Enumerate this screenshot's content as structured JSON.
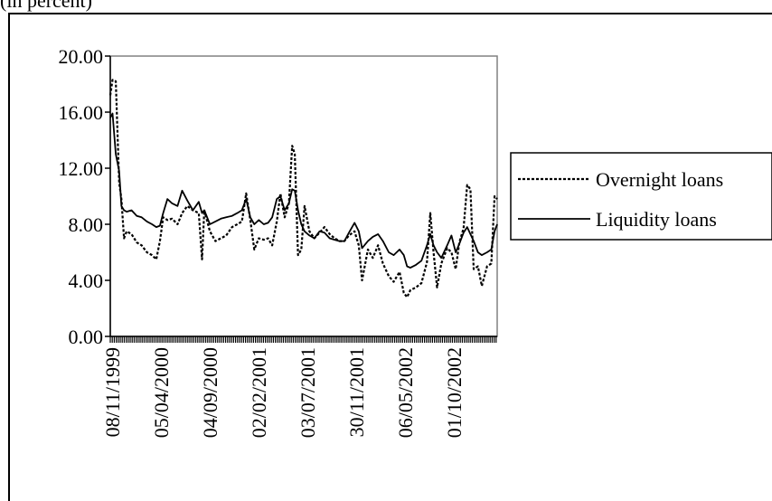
{
  "header": {
    "partial_text": "(in percent)"
  },
  "chart_data": {
    "type": "line",
    "ylim": [
      0,
      20
    ],
    "y_ticks": [
      "0.00",
      "4.00",
      "8.00",
      "12.00",
      "16.00",
      "20.00"
    ],
    "x_ticks": [
      "08/11/1999",
      "05/04/2000",
      "04/09/2000",
      "02/02/2001",
      "03/07/2001",
      "30/11/2001",
      "06/05/2002",
      "01/10/2002"
    ],
    "x_range": [
      "1999-11-08",
      "2003-02-05"
    ],
    "legend": {
      "position": "right",
      "entries": [
        "Overnight loans",
        "Liquidity loans"
      ]
    },
    "grid": false,
    "series": [
      {
        "name": "Overnight loans",
        "style": "dotted",
        "color": "#000000",
        "points": [
          [
            "1999-11-08",
            17.2
          ],
          [
            "1999-11-15",
            18.3
          ],
          [
            "1999-11-25",
            18.2
          ],
          [
            "1999-12-05",
            11.0
          ],
          [
            "1999-12-12",
            9.8
          ],
          [
            "1999-12-20",
            7.0
          ],
          [
            "1999-12-28",
            7.5
          ],
          [
            "2000-01-12",
            7.3
          ],
          [
            "2000-01-28",
            6.7
          ],
          [
            "2000-02-12",
            6.5
          ],
          [
            "2000-02-28",
            6.0
          ],
          [
            "2000-03-15",
            5.8
          ],
          [
            "2000-03-28",
            5.5
          ],
          [
            "2000-04-08",
            6.8
          ],
          [
            "2000-04-18",
            8.5
          ],
          [
            "2000-05-01",
            8.3
          ],
          [
            "2000-05-15",
            8.4
          ],
          [
            "2000-06-01",
            8.0
          ],
          [
            "2000-06-15",
            8.8
          ],
          [
            "2000-07-01",
            9.3
          ],
          [
            "2000-07-18",
            9.0
          ],
          [
            "2000-08-05",
            8.8
          ],
          [
            "2000-08-15",
            5.5
          ],
          [
            "2000-08-22",
            9.0
          ],
          [
            "2000-09-08",
            7.5
          ],
          [
            "2000-09-25",
            6.8
          ],
          [
            "2000-10-12",
            7.0
          ],
          [
            "2000-10-28",
            7.2
          ],
          [
            "2000-11-15",
            7.8
          ],
          [
            "2000-12-01",
            8.0
          ],
          [
            "2000-12-15",
            8.2
          ],
          [
            "2000-12-28",
            10.2
          ],
          [
            "2001-01-10",
            8.3
          ],
          [
            "2001-01-22",
            6.2
          ],
          [
            "2001-02-05",
            7.0
          ],
          [
            "2001-02-20",
            6.9
          ],
          [
            "2001-03-05",
            7.0
          ],
          [
            "2001-03-18",
            6.5
          ],
          [
            "2001-04-01",
            8.2
          ],
          [
            "2001-04-12",
            10.2
          ],
          [
            "2001-04-25",
            8.5
          ],
          [
            "2001-05-08",
            9.5
          ],
          [
            "2001-05-18",
            13.6
          ],
          [
            "2001-05-26",
            13.0
          ],
          [
            "2001-06-05",
            5.8
          ],
          [
            "2001-06-15",
            6.2
          ],
          [
            "2001-06-25",
            9.3
          ],
          [
            "2001-07-10",
            7.5
          ],
          [
            "2001-07-25",
            7.0
          ],
          [
            "2001-08-10",
            7.4
          ],
          [
            "2001-08-25",
            7.8
          ],
          [
            "2001-09-10",
            7.3
          ],
          [
            "2001-09-25",
            7.0
          ],
          [
            "2001-10-10",
            6.8
          ],
          [
            "2001-10-25",
            6.8
          ],
          [
            "2001-11-08",
            7.2
          ],
          [
            "2001-11-25",
            7.5
          ],
          [
            "2001-12-08",
            6.5
          ],
          [
            "2001-12-18",
            4.0
          ],
          [
            "2002-01-05",
            6.2
          ],
          [
            "2002-01-20",
            5.6
          ],
          [
            "2002-02-05",
            6.5
          ],
          [
            "2002-02-20",
            5.2
          ],
          [
            "2002-03-10",
            4.3
          ],
          [
            "2002-03-25",
            3.9
          ],
          [
            "2002-04-12",
            4.6
          ],
          [
            "2002-04-25",
            3.1
          ],
          [
            "2002-05-05",
            2.8
          ],
          [
            "2002-05-15",
            3.3
          ],
          [
            "2002-06-01",
            3.5
          ],
          [
            "2002-06-18",
            3.8
          ],
          [
            "2002-07-05",
            5.3
          ],
          [
            "2002-07-15",
            8.8
          ],
          [
            "2002-07-25",
            6.0
          ],
          [
            "2002-08-05",
            3.5
          ],
          [
            "2002-08-18",
            5.2
          ],
          [
            "2002-09-05",
            6.3
          ],
          [
            "2002-09-18",
            6.0
          ],
          [
            "2002-10-01",
            4.8
          ],
          [
            "2002-10-12",
            6.7
          ],
          [
            "2002-10-25",
            7.7
          ],
          [
            "2002-11-05",
            10.8
          ],
          [
            "2002-11-15",
            10.5
          ],
          [
            "2002-11-25",
            4.8
          ],
          [
            "2002-12-08",
            5.0
          ],
          [
            "2002-12-20",
            3.6
          ],
          [
            "2003-01-05",
            5.0
          ],
          [
            "2003-01-18",
            5.2
          ],
          [
            "2003-01-28",
            10.0
          ],
          [
            "2003-02-05",
            9.8
          ]
        ]
      },
      {
        "name": "Liquidity loans",
        "style": "solid",
        "color": "#000000",
        "points": [
          [
            "1999-11-08",
            15.6
          ],
          [
            "1999-11-15",
            15.9
          ],
          [
            "1999-11-25",
            13.0
          ],
          [
            "1999-12-05",
            11.8
          ],
          [
            "1999-12-12",
            9.3
          ],
          [
            "1999-12-20",
            9.0
          ],
          [
            "1999-12-28",
            8.9
          ],
          [
            "2000-01-12",
            9.0
          ],
          [
            "2000-01-28",
            8.6
          ],
          [
            "2000-02-12",
            8.5
          ],
          [
            "2000-02-28",
            8.2
          ],
          [
            "2000-03-15",
            8.0
          ],
          [
            "2000-03-28",
            7.8
          ],
          [
            "2000-04-08",
            7.9
          ],
          [
            "2000-04-18",
            8.8
          ],
          [
            "2000-05-01",
            9.8
          ],
          [
            "2000-05-15",
            9.5
          ],
          [
            "2000-06-01",
            9.3
          ],
          [
            "2000-06-15",
            10.4
          ],
          [
            "2000-07-01",
            9.7
          ],
          [
            "2000-07-18",
            9.0
          ],
          [
            "2000-08-05",
            9.6
          ],
          [
            "2000-08-15",
            8.8
          ],
          [
            "2000-08-22",
            9.0
          ],
          [
            "2000-09-08",
            8.0
          ],
          [
            "2000-09-25",
            8.2
          ],
          [
            "2000-10-12",
            8.4
          ],
          [
            "2000-10-28",
            8.5
          ],
          [
            "2000-11-15",
            8.6
          ],
          [
            "2000-12-01",
            8.8
          ],
          [
            "2000-12-15",
            9.0
          ],
          [
            "2000-12-28",
            9.8
          ],
          [
            "2001-01-10",
            8.5
          ],
          [
            "2001-01-22",
            8.0
          ],
          [
            "2001-02-05",
            8.3
          ],
          [
            "2001-02-20",
            8.0
          ],
          [
            "2001-03-05",
            8.1
          ],
          [
            "2001-03-18",
            8.5
          ],
          [
            "2001-04-01",
            9.8
          ],
          [
            "2001-04-12",
            10.0
          ],
          [
            "2001-04-25",
            9.0
          ],
          [
            "2001-05-08",
            9.5
          ],
          [
            "2001-05-18",
            10.5
          ],
          [
            "2001-05-26",
            10.4
          ],
          [
            "2001-06-05",
            9.0
          ],
          [
            "2001-06-15",
            8.0
          ],
          [
            "2001-06-25",
            7.5
          ],
          [
            "2001-07-10",
            7.2
          ],
          [
            "2001-07-25",
            7.0
          ],
          [
            "2001-08-10",
            7.5
          ],
          [
            "2001-08-25",
            7.4
          ],
          [
            "2001-09-10",
            7.0
          ],
          [
            "2001-09-25",
            6.9
          ],
          [
            "2001-10-10",
            6.8
          ],
          [
            "2001-10-25",
            6.8
          ],
          [
            "2001-11-08",
            7.4
          ],
          [
            "2001-11-25",
            8.1
          ],
          [
            "2001-12-08",
            7.5
          ],
          [
            "2001-12-18",
            6.3
          ],
          [
            "2002-01-05",
            6.8
          ],
          [
            "2002-01-20",
            7.1
          ],
          [
            "2002-02-05",
            7.3
          ],
          [
            "2002-02-20",
            6.8
          ],
          [
            "2002-03-10",
            6.0
          ],
          [
            "2002-03-25",
            5.8
          ],
          [
            "2002-04-12",
            6.2
          ],
          [
            "2002-04-25",
            5.8
          ],
          [
            "2002-05-05",
            5.0
          ],
          [
            "2002-05-15",
            4.9
          ],
          [
            "2002-06-01",
            5.1
          ],
          [
            "2002-06-18",
            5.4
          ],
          [
            "2002-07-05",
            6.5
          ],
          [
            "2002-07-15",
            7.3
          ],
          [
            "2002-07-25",
            6.5
          ],
          [
            "2002-08-05",
            6.0
          ],
          [
            "2002-08-18",
            5.6
          ],
          [
            "2002-09-05",
            6.5
          ],
          [
            "2002-09-18",
            7.2
          ],
          [
            "2002-10-01",
            6.0
          ],
          [
            "2002-10-12",
            6.6
          ],
          [
            "2002-10-25",
            7.4
          ],
          [
            "2002-11-05",
            7.8
          ],
          [
            "2002-11-15",
            7.3
          ],
          [
            "2002-11-25",
            6.8
          ],
          [
            "2002-12-08",
            6.0
          ],
          [
            "2002-12-20",
            5.8
          ],
          [
            "2003-01-05",
            6.0
          ],
          [
            "2003-01-18",
            6.2
          ],
          [
            "2003-01-28",
            7.5
          ],
          [
            "2003-02-05",
            8.0
          ]
        ]
      }
    ]
  }
}
